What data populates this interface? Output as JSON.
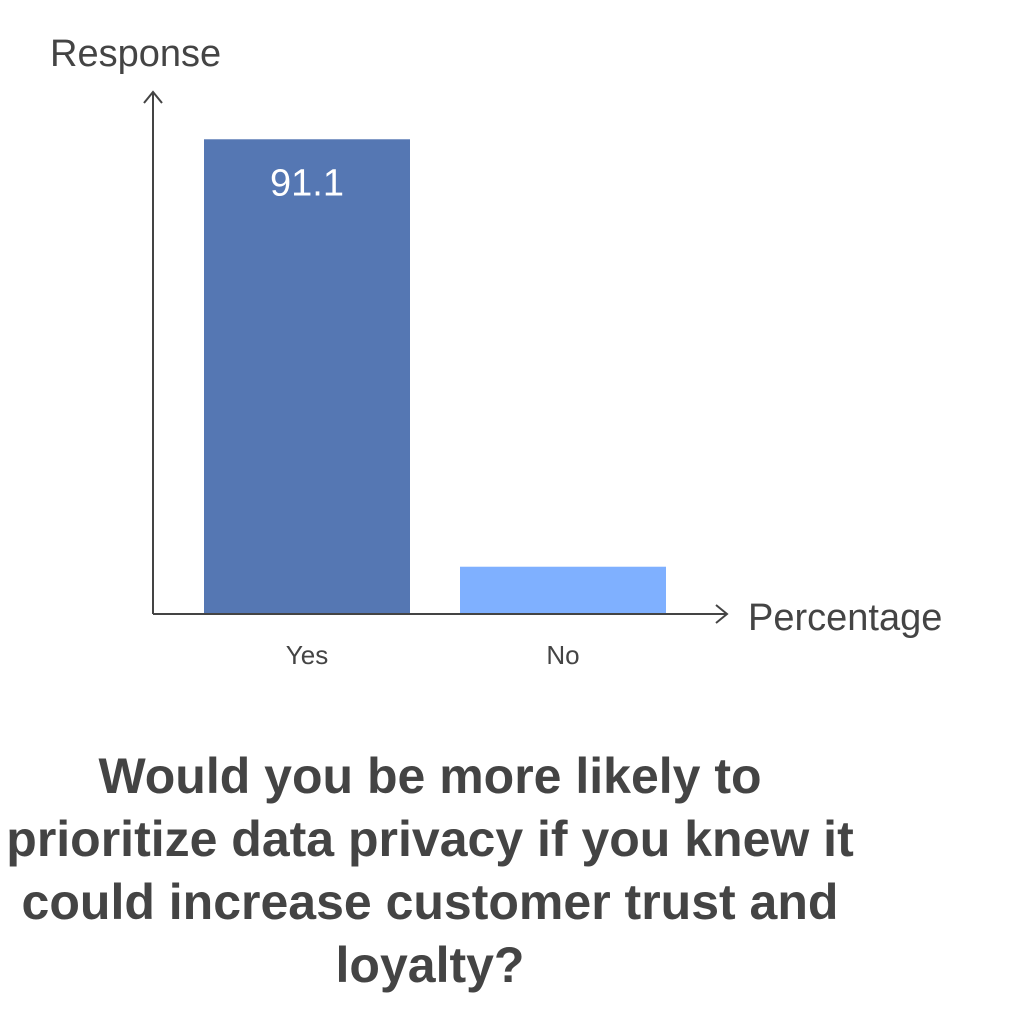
{
  "question": "Would you be more likely to prioritize data privacy if you knew it could increase customer trust and loyalty?",
  "chart_data": {
    "type": "bar",
    "categories": [
      "Yes",
      "No"
    ],
    "values": [
      91.1,
      8.9
    ],
    "data_labels": [
      "91.1",
      ""
    ],
    "ylabel": "Response",
    "xlabel": "Percentage",
    "ylim": [
      0,
      100
    ],
    "grid": false,
    "colors": [
      "#5577b3",
      "#7fb0ff"
    ]
  }
}
